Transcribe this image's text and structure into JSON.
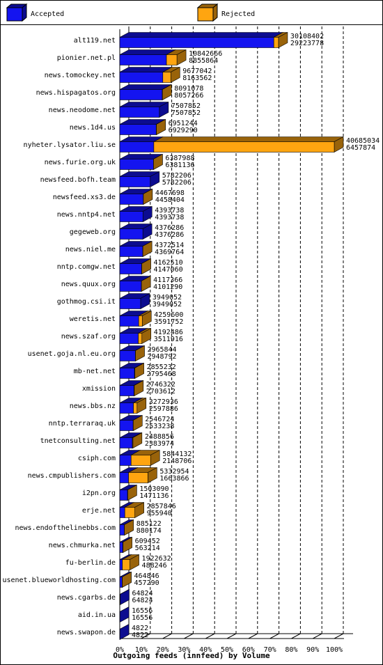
{
  "chart_data": {
    "type": "bar3d",
    "title": "Outgoing feeds (innfeed) by Volume",
    "categories": [
      "alt119.net",
      "pionier.net.pl",
      "news.tomockey.net",
      "news.hispagatos.org",
      "news.neodome.net",
      "news.1d4.us",
      "nyheter.lysator.liu.se",
      "news.furie.org.uk",
      "newsfeed.bofh.team",
      "newsfeed.xs3.de",
      "news.nntp4.net",
      "gegeweb.org",
      "news.niel.me",
      "nntp.comgw.net",
      "news.quux.org",
      "gothmog.csi.it",
      "weretis.net",
      "news.szaf.org",
      "usenet.goja.nl.eu.org",
      "mb-net.net",
      "xmission",
      "news.bbs.nz",
      "nntp.terraraq.uk",
      "tnetconsulting.net",
      "csiph.com",
      "news.cmpublishers.com",
      "i2pn.org",
      "erje.net",
      "news.endofthelinebbs.com",
      "news.chmurka.net",
      "fu-berlin.de",
      "usenet.blueworldhosting.com",
      "news.cgarbs.de",
      "aid.in.ua",
      "news.swapon.de"
    ],
    "totals": [
      30108402,
      10842666,
      9677042,
      8091078,
      7507852,
      6951244,
      40685034,
      6387988,
      5782206,
      4467698,
      4393738,
      4376286,
      4372514,
      4162510,
      4117366,
      3949052,
      4259600,
      4192486,
      2965844,
      2855232,
      2746322,
      3272936,
      2546724,
      2488856,
      5844132,
      5332954,
      1503090,
      2857846,
      885122,
      609452,
      1922632,
      464846,
      64824,
      16556,
      4822
    ],
    "series": [
      {
        "name": "Accepted",
        "color": "#1414f0",
        "values": [
          29223778,
          8855864,
          8163562,
          8057266,
          7507852,
          6929290,
          6457874,
          6381136,
          5782206,
          4458404,
          4393738,
          4376286,
          4369764,
          4147060,
          4101290,
          3949052,
          3591752,
          3511916,
          2948792,
          2795468,
          2703612,
          2597886,
          2533238,
          2383974,
          2148706,
          1663866,
          1471136,
          955940,
          880174,
          563214,
          488246,
          457290,
          64824,
          16556,
          4822
        ]
      },
      {
        "name": "Rejected",
        "color": "#ffa510",
        "values": [
          884624,
          1986802,
          1513480,
          33812,
          0,
          21954,
          34227160,
          6852,
          0,
          9294,
          0,
          0,
          2750,
          15450,
          16076,
          0,
          667848,
          680570,
          17052,
          59764,
          42710,
          675050,
          13486,
          104882,
          3695426,
          3669088,
          31954,
          1901906,
          4948,
          46238,
          1434386,
          7556,
          0,
          0,
          0
        ]
      }
    ],
    "xlim": [
      0,
      40685034
    ],
    "xticks": [
      {
        "value": 0,
        "label": "0%"
      },
      {
        "value": 4068503.4,
        "label": "10%"
      },
      {
        "value": 8137006.8,
        "label": "20%"
      },
      {
        "value": 12205510.2,
        "label": "30%"
      },
      {
        "value": 16274013.6,
        "label": "40%"
      },
      {
        "value": 20342517,
        "label": "50%"
      },
      {
        "value": 24411020.4,
        "label": "60%"
      },
      {
        "value": 28479523.8,
        "label": "70%"
      },
      {
        "value": 32548027.2,
        "label": "80%"
      },
      {
        "value": 36616530.6,
        "label": "90%"
      },
      {
        "value": 40685034,
        "label": "100%"
      }
    ],
    "grid": true
  }
}
